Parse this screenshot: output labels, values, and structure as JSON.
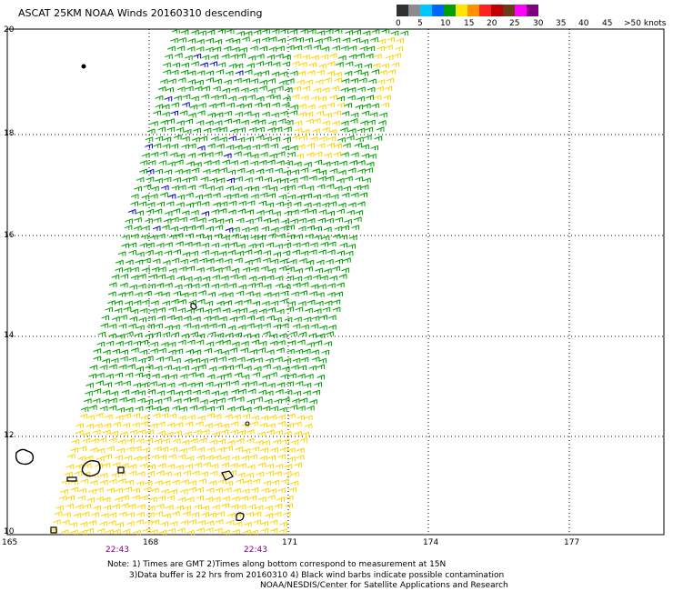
{
  "title": "ASCAT 25KM NOAA Winds 20160310 descending",
  "legend": {
    "labels": [
      "0",
      "5",
      "10",
      "15",
      "20",
      "25",
      "30",
      "35",
      "40",
      "45",
      ">50 knots"
    ],
    "colors": [
      "#303030",
      "#8c8c8c",
      "#00c8ff",
      "#0064ff",
      "#00a000",
      "#ffe400",
      "#ff9000",
      "#ff2020",
      "#c00000",
      "#6a3a1a",
      "#ff00ff",
      "#800080"
    ]
  },
  "lat_labels": [
    "20",
    "18",
    "16",
    "14",
    "12",
    "10"
  ],
  "lon_labels": [
    "165",
    "168",
    "171",
    "174",
    "177"
  ],
  "time_labels": [
    "22:43",
    "22:43"
  ],
  "notes": [
    "Note: 1) Times are GMT 2)Times along bottom correspond to measurement at 15N",
    "3)Data buffer is 22 hrs from 20160310 4) Black wind barbs indicate possible contamination",
    "NOAA/NESDIS/Center for Satellite Applications and Research"
  ],
  "map_style": {
    "barb_colors": {
      "calm": "#0000c8",
      "moderate": "#00a000",
      "strong": "#ffd400"
    }
  }
}
